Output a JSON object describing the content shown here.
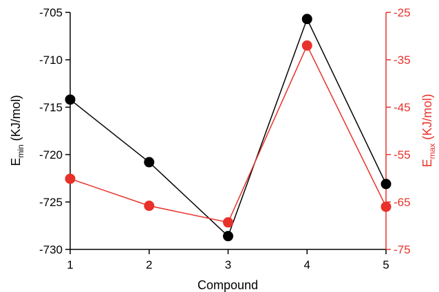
{
  "chart_data": {
    "type": "line",
    "xlabel": "Compound",
    "categories": [
      "1",
      "2",
      "3",
      "4",
      "5"
    ],
    "x": [
      1,
      2,
      3,
      4,
      5
    ],
    "y_left": {
      "label_main": "E",
      "label_sub": "min",
      "label_unit": " (KJ/mol)",
      "range": [
        -730,
        -705
      ],
      "ticks": [
        "-730",
        "-725",
        "-720",
        "-715",
        "-710",
        "-705"
      ],
      "tick_values": [
        -730,
        -725,
        -720,
        -715,
        -710,
        -705
      ],
      "color": "#000000"
    },
    "y_right": {
      "label_main": "E",
      "label_sub": "max",
      "label_unit": " (KJ/mol)",
      "range": [
        -75,
        -25
      ],
      "ticks": [
        "-75",
        "-65",
        "-55",
        "-45",
        "-35",
        "-25"
      ],
      "tick_values": [
        -75,
        -65,
        -55,
        -45,
        -35,
        -25
      ],
      "color": "#e8312a"
    },
    "series": [
      {
        "axis": "left",
        "color": "#000000",
        "values": [
          -714.2,
          -720.8,
          -728.6,
          -705.7,
          -723.1
        ]
      },
      {
        "axis": "right",
        "color": "#e8312a",
        "values": [
          -60.1,
          -65.8,
          -69.3,
          -32.0,
          -66.0
        ]
      }
    ],
    "grid": false,
    "legend": "none"
  }
}
